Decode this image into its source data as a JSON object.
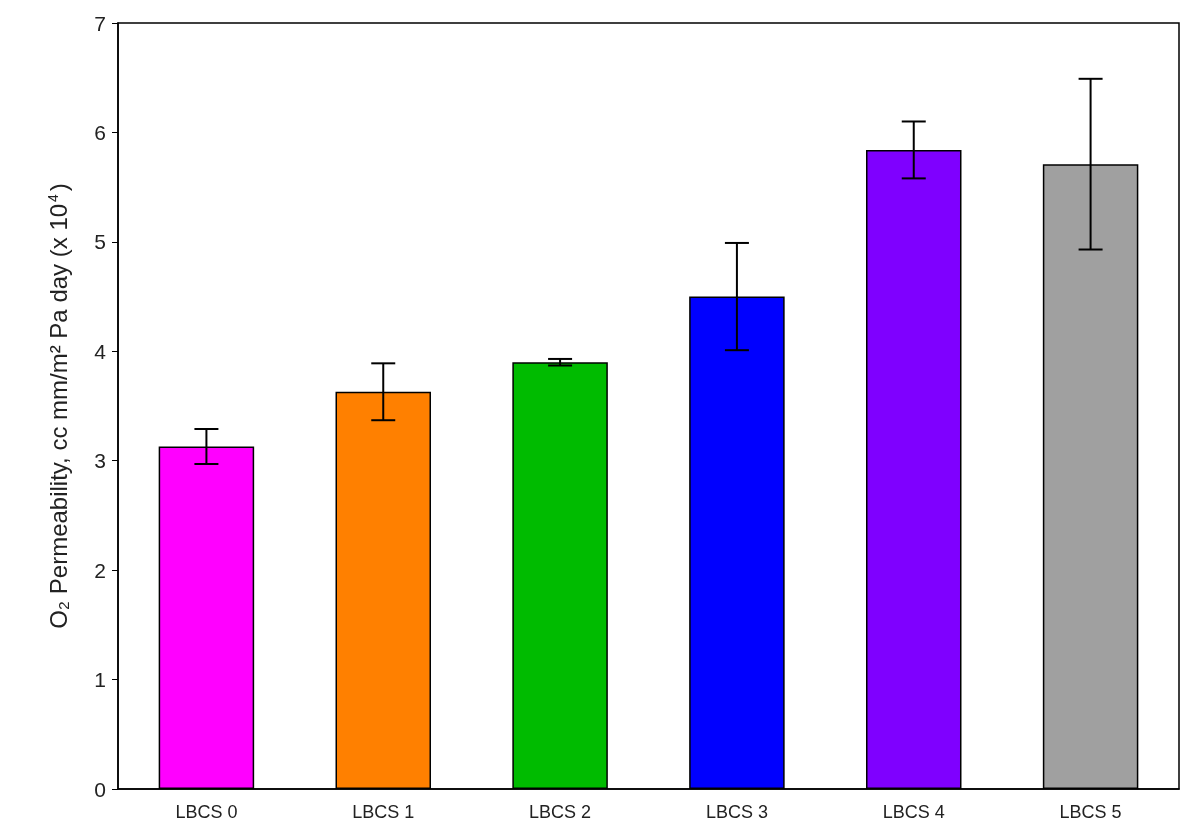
{
  "chart_data": {
    "type": "bar",
    "ylabel": "O₂ Permeability, cc mm/m² Pa day (x 10$^{4}$)",
    "categories": [
      "LBCS 0",
      "LBCS 1",
      "LBCS 2",
      "LBCS 3",
      "LBCS 4",
      "LBCS 5"
    ],
    "values": [
      3.13,
      3.63,
      3.9,
      4.5,
      5.84,
      5.71
    ],
    "errors": [
      0.16,
      0.26,
      0.03,
      0.49,
      0.26,
      0.78
    ],
    "colors": [
      "#ff00ff",
      "#ff8000",
      "#00bb00",
      "#0000ff",
      "#7f00ff",
      "#a0a0a0"
    ],
    "ylim": [
      0,
      7
    ],
    "yticks": [
      0,
      1,
      2,
      3,
      4,
      5,
      6,
      7
    ],
    "grid": false
  }
}
